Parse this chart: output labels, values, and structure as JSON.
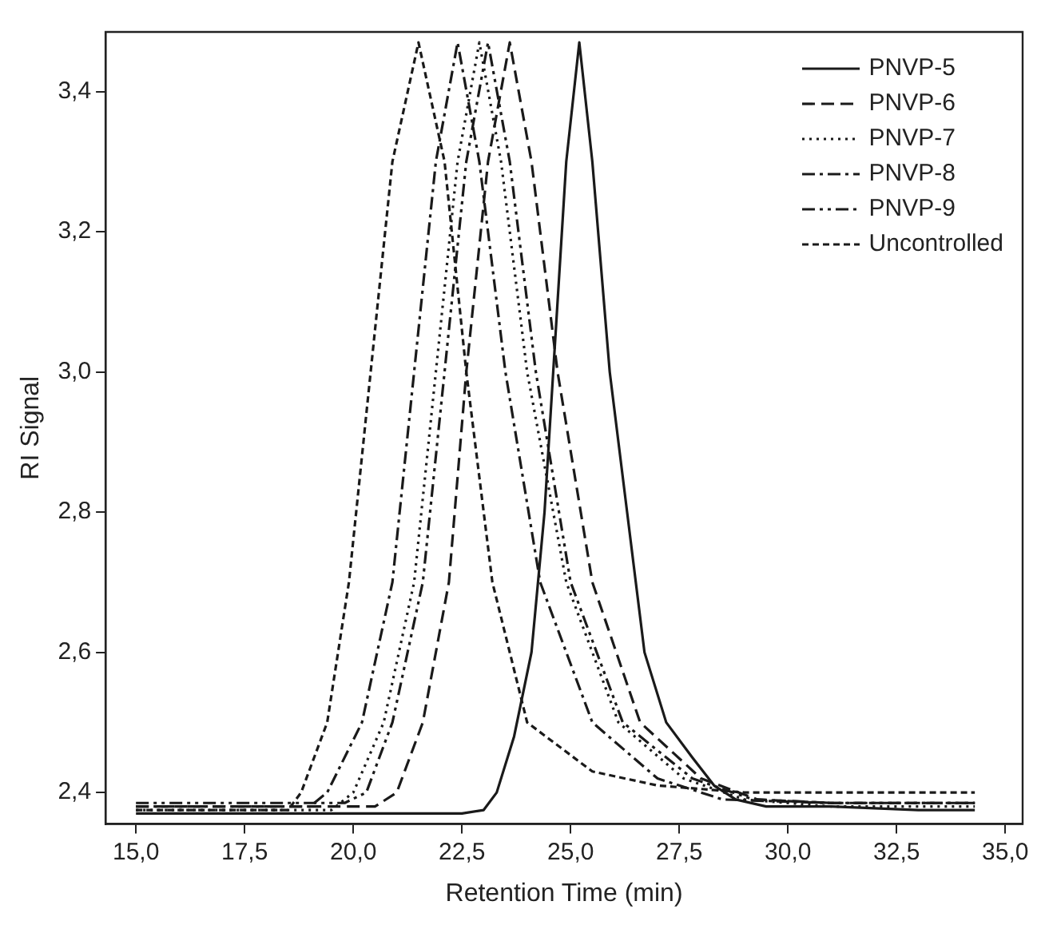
{
  "chart_data": {
    "type": "line",
    "xlabel": "Retention Time (min)",
    "ylabel": "RI Signal",
    "xlim": [
      14.3,
      35.4
    ],
    "ylim": [
      2.355,
      3.485
    ],
    "xticks": [
      {
        "value": 15,
        "label": "15,0"
      },
      {
        "value": 17.5,
        "label": "17,5"
      },
      {
        "value": 20,
        "label": "20,0"
      },
      {
        "value": 22.5,
        "label": "22,5"
      },
      {
        "value": 25,
        "label": "25,0"
      },
      {
        "value": 27.5,
        "label": "27,5"
      },
      {
        "value": 30,
        "label": "30,0"
      },
      {
        "value": 32.5,
        "label": "32,5"
      },
      {
        "value": 35,
        "label": "35,0"
      }
    ],
    "yticks": [
      {
        "value": 2.4,
        "label": "2,4"
      },
      {
        "value": 2.6,
        "label": "2,6"
      },
      {
        "value": 2.8,
        "label": "2,8"
      },
      {
        "value": 3.0,
        "label": "3,0"
      },
      {
        "value": 3.2,
        "label": "3,2"
      },
      {
        "value": 3.4,
        "label": "3,4"
      }
    ],
    "grid": false,
    "legend": "top right",
    "marker": "none",
    "series": [
      {
        "name": "PNVP-5",
        "color": "#1a1a1a",
        "line_style": "solid",
        "x": [
          15,
          20,
          22.5,
          23.0,
          23.3,
          23.7,
          24.1,
          24.4,
          24.6,
          24.9,
          25.2,
          25.5,
          25.9,
          26.3,
          26.7,
          27.2,
          27.8,
          28.3,
          28.8,
          29.5,
          31,
          33,
          34.3
        ],
        "values": [
          2.37,
          2.37,
          2.37,
          2.375,
          2.4,
          2.48,
          2.6,
          2.8,
          3.0,
          3.3,
          3.47,
          3.3,
          3.0,
          2.8,
          2.6,
          2.5,
          2.45,
          2.41,
          2.39,
          2.38,
          2.38,
          2.375,
          2.375
        ]
      },
      {
        "name": "PNVP-6",
        "color": "#1a1a1a",
        "line_style": "dashed",
        "x": [
          15,
          18,
          20.5,
          21.0,
          21.6,
          22.2,
          22.6,
          23.1,
          23.6,
          24.1,
          24.7,
          25.5,
          26.6,
          28.0,
          29.3,
          31,
          34.3
        ],
        "values": [
          2.38,
          2.38,
          2.38,
          2.4,
          2.5,
          2.7,
          3.0,
          3.3,
          3.47,
          3.3,
          3.0,
          2.7,
          2.5,
          2.42,
          2.39,
          2.385,
          2.385
        ]
      },
      {
        "name": "PNVP-7",
        "color": "#1a1a1a",
        "line_style": "dotted",
        "x": [
          15,
          18,
          19.5,
          20.0,
          20.7,
          21.4,
          21.9,
          22.4,
          22.9,
          23.4,
          24.0,
          24.9,
          26.1,
          27.6,
          29,
          31,
          34.3
        ],
        "values": [
          2.375,
          2.375,
          2.375,
          2.4,
          2.5,
          2.7,
          3.0,
          3.3,
          3.47,
          3.3,
          3.0,
          2.7,
          2.5,
          2.42,
          2.39,
          2.38,
          2.38
        ]
      },
      {
        "name": "PNVP-8",
        "color": "#1a1a1a",
        "line_style": "dashdot",
        "x": [
          15,
          17,
          19,
          19.4,
          20.2,
          20.9,
          21.4,
          21.9,
          22.4,
          22.9,
          23.5,
          24.3,
          25.5,
          27,
          28.5,
          31,
          34.3
        ],
        "values": [
          2.38,
          2.38,
          2.38,
          2.4,
          2.5,
          2.7,
          3.0,
          3.3,
          3.47,
          3.3,
          3.0,
          2.7,
          2.5,
          2.42,
          2.39,
          2.385,
          2.385
        ]
      },
      {
        "name": "PNVP-9",
        "color": "#1a1a1a",
        "line_style": "dashdotdot",
        "x": [
          15,
          18,
          19.8,
          20.3,
          20.9,
          21.6,
          22.1,
          22.6,
          23.1,
          23.6,
          24.2,
          25.0,
          26.2,
          27.8,
          29.2,
          31,
          34.3
        ],
        "values": [
          2.385,
          2.385,
          2.385,
          2.4,
          2.5,
          2.7,
          3.0,
          3.3,
          3.47,
          3.3,
          3.0,
          2.7,
          2.5,
          2.42,
          2.39,
          2.385,
          2.385
        ]
      },
      {
        "name": "Uncontrolled",
        "color": "#1a1a1a",
        "line_style": "shortdash",
        "x": [
          15,
          17,
          18.5,
          18.8,
          19.4,
          19.9,
          20.4,
          20.9,
          21.5,
          22.1,
          22.6,
          23.2,
          24.0,
          25.5,
          27,
          29,
          31,
          34.3
        ],
        "values": [
          2.375,
          2.375,
          2.375,
          2.4,
          2.5,
          2.7,
          3.0,
          3.3,
          3.47,
          3.3,
          3.0,
          2.7,
          2.5,
          2.43,
          2.41,
          2.4,
          2.4,
          2.4
        ]
      }
    ]
  }
}
